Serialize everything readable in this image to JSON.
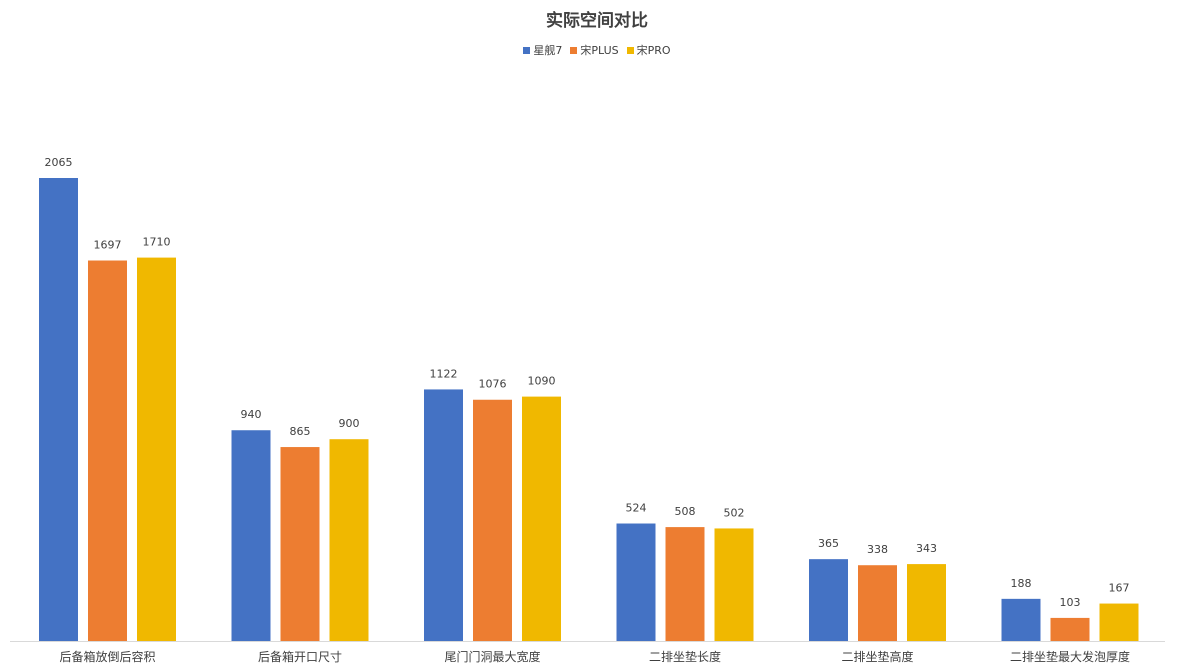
{
  "chart_data": {
    "type": "bar",
    "title": "实际空间对比",
    "categories": [
      "后备箱放倒后容积",
      "后备箱开口尺寸",
      "尾门门洞最大宽度",
      "二排坐垫长度",
      "二排坐垫高度",
      "二排坐垫最大发泡厚度"
    ],
    "series": [
      {
        "name": "星舰7",
        "color": "#4472c4",
        "values": [
          2065,
          940,
          1122,
          524,
          365,
          188
        ]
      },
      {
        "name": "宋PLUS",
        "color": "#ed7d31",
        "values": [
          1697,
          865,
          1076,
          508,
          338,
          103
        ]
      },
      {
        "name": "宋PRO",
        "color": "#f0b800",
        "values": [
          1710,
          900,
          1090,
          502,
          343,
          167
        ]
      }
    ],
    "ylim": [
      0,
      2065
    ],
    "grid": false,
    "data_labels": true,
    "legend_position": "top"
  }
}
